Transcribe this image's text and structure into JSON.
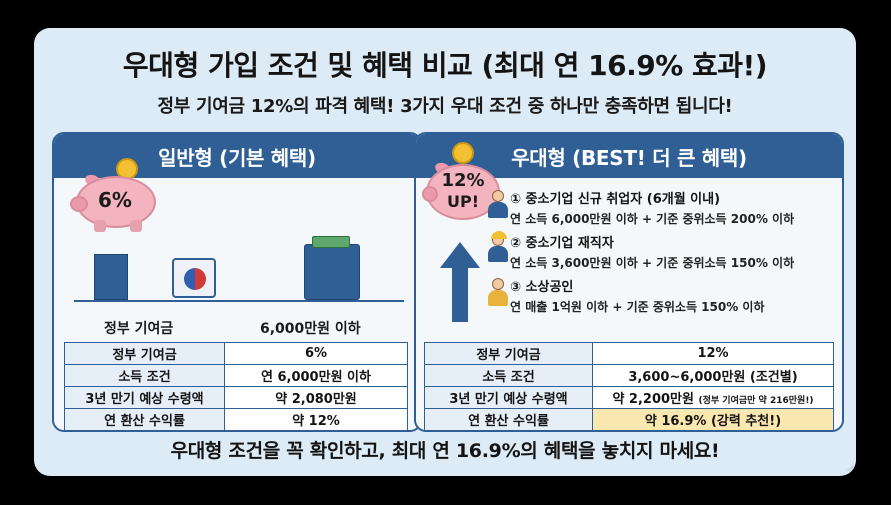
{
  "title": "우대형 가입 조건 및 혜택 비교 (최대 연 16.9% 효과!)",
  "subtitle": "정부 기여금 12%의 파격 혜택! 3가지 우대 조건 중 하나만 충족하면 됩니다!",
  "left": {
    "header": "일반형 (기본 혜택)",
    "pig_label": "6%",
    "label_contribution": "정부 기여금",
    "label_income": "6,000만원 이하",
    "table": [
      {
        "k": "정부 기여금",
        "v": "6%"
      },
      {
        "k": "소득 조건",
        "v": "연 6,000만원 이하"
      },
      {
        "k": "3년 만기 예상 수령액",
        "v": "약 2,080만원"
      },
      {
        "k": "연 환산 수익률",
        "v": "약 12%"
      }
    ]
  },
  "right": {
    "header": "우대형 (BEST! 더 큰 혜택)",
    "pig_label_top": "12%",
    "pig_label_bottom": "UP!",
    "conditions": [
      {
        "title": "① 중소기업 신규 취업자 (6개월 이내)",
        "detail": "연 소득 6,000만원 이하 + 기준 중위소득 200% 이하"
      },
      {
        "title": "② 중소기업 재직자",
        "detail": "연 소득 3,600만원 이하 + 기준 중위소득 150% 이하"
      },
      {
        "title": "③ 소상공인",
        "detail": "연 매출 1억원 이하 + 기준 중위소득 150% 이하"
      }
    ],
    "table": [
      {
        "k": "정부 기여금",
        "v": "12%"
      },
      {
        "k": "소득 조건",
        "v": "3,600~6,000만원 (조건별)"
      },
      {
        "k": "3년 만기 예상 수령액",
        "v": "약 2,200만원",
        "note": "(정부 기여금만 약 216만원!)"
      },
      {
        "k": "연 환산 수익률",
        "v": "약 16.9% (강력 추천!)"
      }
    ]
  },
  "footer": "우대형 조건을 꼭 확인하고, 최대 연 16.9%의 혜택을 놓치지 마세요!",
  "colors": {
    "navy": "#2f5f95",
    "background": "#dcebf6",
    "highlight": "#fbe8b0",
    "pig": "#f3b3bf",
    "coin": "#f2c033"
  }
}
